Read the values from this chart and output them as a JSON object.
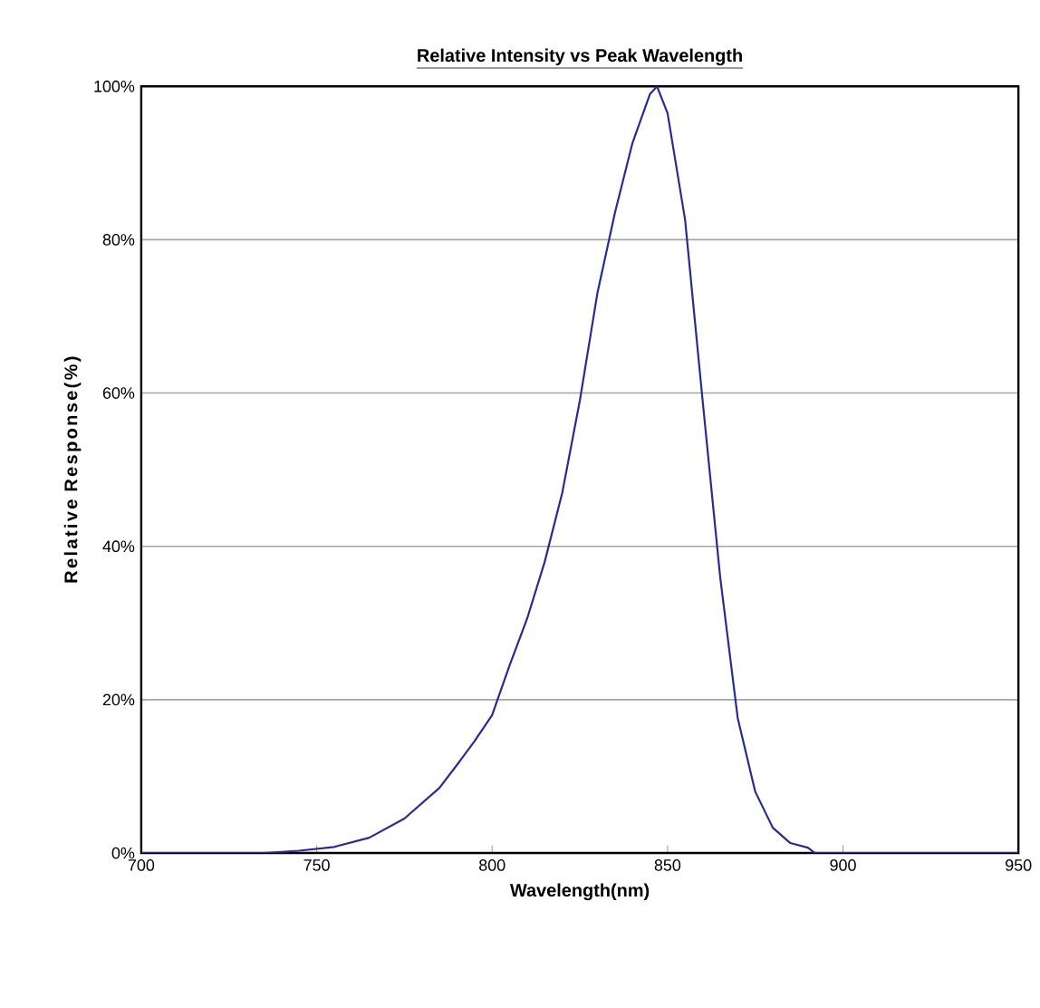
{
  "chart_data": {
    "type": "line",
    "title": "Relative Intensity vs Peak Wavelength",
    "xlabel": "Wavelength(nm)",
    "ylabel": "Relative Response(%)",
    "xlim": [
      700,
      950
    ],
    "xticks": [
      700,
      750,
      800,
      850,
      900,
      950
    ],
    "ylim": [
      0,
      100
    ],
    "yticks": [
      {
        "value": 0,
        "label": "0%"
      },
      {
        "value": 20,
        "label": "20%"
      },
      {
        "value": 40,
        "label": "40%"
      },
      {
        "value": 60,
        "label": "60%"
      },
      {
        "value": 80,
        "label": "80%"
      },
      {
        "value": 100,
        "label": "100%"
      }
    ],
    "grid": "y",
    "marker": "none",
    "line_style": "solid",
    "series": [
      {
        "color": "#2a2a90",
        "x": [
          700,
          735,
          745,
          755,
          765,
          775,
          785,
          790,
          795,
          800,
          805,
          810,
          815,
          820,
          825,
          830,
          835,
          840,
          845,
          847,
          850,
          855,
          860,
          865,
          870,
          875,
          880,
          885,
          890,
          892,
          950
        ],
        "values": [
          0,
          0,
          0.3,
          0.8,
          2,
          4.5,
          8.5,
          11.5,
          14.6,
          18,
          24.5,
          30.6,
          38,
          47,
          59,
          73,
          83.5,
          92.6,
          99,
          100,
          96.5,
          82.6,
          59,
          36,
          17.6,
          8,
          3.3,
          1.3,
          0.7,
          0,
          0
        ]
      }
    ]
  }
}
